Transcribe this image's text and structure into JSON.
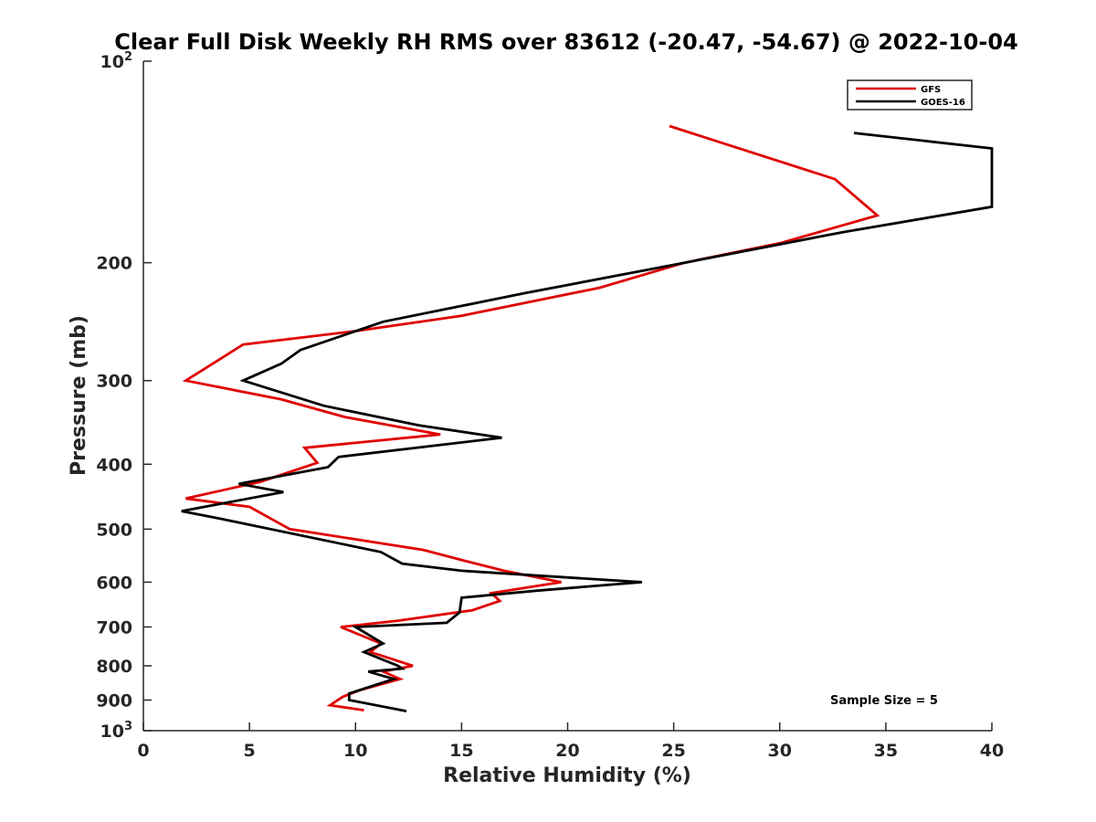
{
  "chart_data": {
    "type": "line",
    "title": "Clear Full Disk Weekly RH RMS over 83612 (-20.47, -54.67) @ 2022-10-04",
    "xlabel": "Relative Humidity (%)",
    "ylabel": "Pressure (mb)",
    "xlim": [
      0,
      40
    ],
    "ylim": [
      100,
      1000
    ],
    "y_scale": "log",
    "y_reversed": true,
    "grid": false,
    "legend_position": "top-right",
    "x_ticks": [
      "0",
      "5",
      "10",
      "15",
      "20",
      "25",
      "30",
      "35",
      "40"
    ],
    "y_ticks": [
      {
        "value": 100,
        "base": "10",
        "exp": "2"
      },
      {
        "value": 200,
        "label": "200"
      },
      {
        "value": 300,
        "label": "300"
      },
      {
        "value": 400,
        "label": "400"
      },
      {
        "value": 500,
        "label": "500"
      },
      {
        "value": 600,
        "label": "600"
      },
      {
        "value": 700,
        "label": "700"
      },
      {
        "value": 800,
        "label": "800"
      },
      {
        "value": 900,
        "label": "900"
      },
      {
        "value": 1000,
        "base": "10",
        "exp": "3"
      }
    ],
    "annotation": "Sample Size = 5",
    "series": [
      {
        "name": "GFS",
        "color": "#e00000",
        "points": [
          [
            24.8,
            125
          ],
          [
            32.6,
            150
          ],
          [
            34.6,
            170
          ],
          [
            30,
            187
          ],
          [
            25.5,
            200
          ],
          [
            21.5,
            218
          ],
          [
            15,
            240
          ],
          [
            10,
            253
          ],
          [
            4.7,
            265
          ],
          [
            3.5,
            280
          ],
          [
            2.0,
            300
          ],
          [
            6.5,
            320
          ],
          [
            9.5,
            340
          ],
          [
            14.0,
            361
          ],
          [
            7.6,
            378
          ],
          [
            8.2,
            398
          ],
          [
            5.5,
            425
          ],
          [
            2.0,
            450
          ],
          [
            5.0,
            463
          ],
          [
            6.9,
            500
          ],
          [
            13.2,
            537
          ],
          [
            15.0,
            556
          ],
          [
            17.0,
            577
          ],
          [
            19.7,
            600
          ],
          [
            16.4,
            623
          ],
          [
            16.8,
            640
          ],
          [
            15.5,
            661
          ],
          [
            12.0,
            685
          ],
          [
            9.3,
            700
          ],
          [
            11.2,
            741
          ],
          [
            10.7,
            763
          ],
          [
            12.7,
            800
          ],
          [
            11.3,
            816
          ],
          [
            12.1,
            837
          ],
          [
            10.2,
            870
          ],
          [
            9.4,
            890
          ],
          [
            8.8,
            916
          ],
          [
            10.4,
            932
          ]
        ]
      },
      {
        "name": "GOES-16",
        "color": "#000000",
        "points": [
          [
            33.5,
            128
          ],
          [
            40.0,
            135
          ],
          [
            40.0,
            165
          ],
          [
            33.0,
            180
          ],
          [
            25.5,
            200
          ],
          [
            18.0,
            222
          ],
          [
            11.3,
            245
          ],
          [
            7.4,
            270
          ],
          [
            6.5,
            283
          ],
          [
            4.7,
            300
          ],
          [
            8.5,
            327
          ],
          [
            13.0,
            350
          ],
          [
            16.9,
            365
          ],
          [
            9.2,
            390
          ],
          [
            8.7,
            404
          ],
          [
            4.5,
            428
          ],
          [
            6.6,
            440
          ],
          [
            1.8,
            470
          ],
          [
            3.7,
            483
          ],
          [
            11.2,
            541
          ],
          [
            12.2,
            563
          ],
          [
            15.0,
            577
          ],
          [
            23.5,
            600
          ],
          [
            18.5,
            618
          ],
          [
            15.0,
            633
          ],
          [
            14.9,
            666
          ],
          [
            14.3,
            690
          ],
          [
            10.0,
            700
          ],
          [
            11.3,
            741
          ],
          [
            10.4,
            763
          ],
          [
            12.0,
            800
          ],
          [
            12.2,
            808
          ],
          [
            10.6,
            816
          ],
          [
            11.8,
            837
          ],
          [
            9.7,
            880
          ],
          [
            9.7,
            900
          ],
          [
            12.4,
            935
          ]
        ]
      }
    ]
  }
}
